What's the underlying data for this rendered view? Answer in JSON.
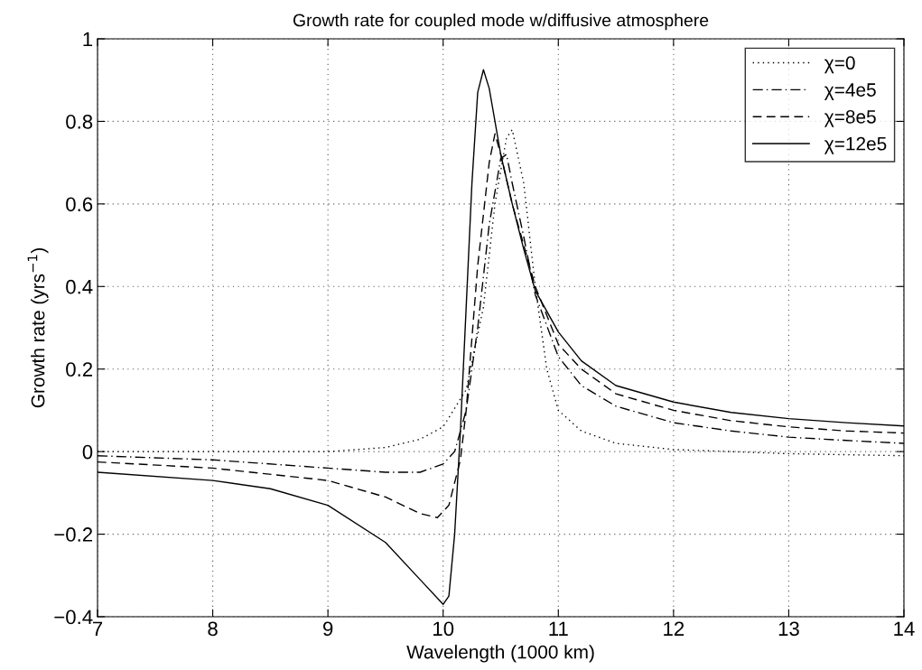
{
  "chart_data": {
    "type": "line",
    "title": "Growth rate for coupled mode w/diffusive atmosphere",
    "xlabel": "Wavelength (1000 km)",
    "ylabel": "Growth rate (yrs$^{−1}$)",
    "xlim": [
      7,
      14
    ],
    "xticks": [
      7,
      8,
      9,
      10,
      11,
      12,
      13,
      14
    ],
    "ylim": [
      -0.4,
      1
    ],
    "yticks": [
      {
        "value": -0.4,
        "label": "−0.4"
      },
      {
        "value": -0.2,
        "label": "−0.2"
      },
      0,
      0.2,
      0.4,
      0.6,
      0.8,
      1
    ],
    "grid": true,
    "legend": "top right",
    "series": [
      {
        "name": "χ=0",
        "color": "#000000",
        "line_style": "dotted",
        "x": [
          7,
          8,
          9,
          9.5,
          9.8,
          10.0,
          10.2,
          10.35,
          10.45,
          10.55,
          10.6,
          10.7,
          10.8,
          10.9,
          11,
          11.2,
          11.5,
          12,
          13,
          14
        ],
        "values": [
          0,
          0,
          0,
          0.01,
          0.03,
          0.06,
          0.15,
          0.35,
          0.6,
          0.76,
          0.78,
          0.65,
          0.4,
          0.2,
          0.1,
          0.05,
          0.02,
          0.005,
          -0.005,
          -0.01
        ]
      },
      {
        "name": "χ=4e5",
        "color": "#000000",
        "line_style": "dashdot",
        "x": [
          7,
          8,
          9,
          9.5,
          9.8,
          10.0,
          10.1,
          10.2,
          10.3,
          10.4,
          10.5,
          10.55,
          10.6,
          10.7,
          10.8,
          11,
          11.2,
          11.5,
          12,
          12.5,
          13,
          13.5,
          14
        ],
        "values": [
          -0.01,
          -0.02,
          -0.04,
          -0.05,
          -0.05,
          -0.03,
          0.0,
          0.1,
          0.3,
          0.55,
          0.71,
          0.72,
          0.65,
          0.52,
          0.38,
          0.23,
          0.16,
          0.11,
          0.07,
          0.05,
          0.035,
          0.027,
          0.02
        ]
      },
      {
        "name": "χ=8e5",
        "color": "#000000",
        "line_style": "dashed",
        "x": [
          7,
          8,
          9,
          9.5,
          9.8,
          9.95,
          10.05,
          10.15,
          10.2,
          10.3,
          10.4,
          10.45,
          10.5,
          10.6,
          10.8,
          11,
          11.2,
          11.5,
          12,
          12.5,
          13,
          13.5,
          14
        ],
        "values": [
          -0.025,
          -0.04,
          -0.07,
          -0.11,
          -0.15,
          -0.16,
          -0.13,
          -0.02,
          0.1,
          0.45,
          0.7,
          0.77,
          0.72,
          0.6,
          0.4,
          0.26,
          0.2,
          0.14,
          0.1,
          0.075,
          0.06,
          0.05,
          0.045
        ]
      },
      {
        "name": "χ=12e5",
        "color": "#000000",
        "line_style": "solid",
        "x": [
          7,
          8,
          8.5,
          9,
          9.5,
          9.8,
          10.0,
          10.05,
          10.1,
          10.15,
          10.2,
          10.25,
          10.3,
          10.35,
          10.4,
          10.5,
          10.6,
          10.7,
          10.8,
          11,
          11.2,
          11.5,
          12,
          12.5,
          13,
          13.5,
          14
        ],
        "values": [
          -0.05,
          -0.07,
          -0.09,
          -0.13,
          -0.22,
          -0.31,
          -0.37,
          -0.35,
          -0.2,
          0.05,
          0.35,
          0.65,
          0.87,
          0.925,
          0.88,
          0.72,
          0.6,
          0.49,
          0.39,
          0.29,
          0.22,
          0.16,
          0.12,
          0.095,
          0.08,
          0.07,
          0.062
        ]
      }
    ]
  }
}
